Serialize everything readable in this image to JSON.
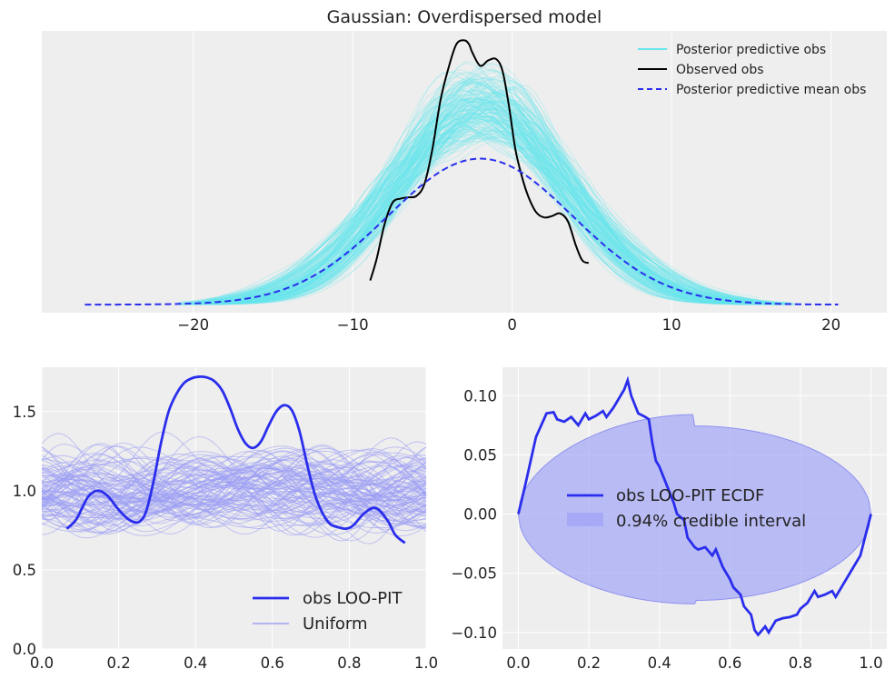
{
  "figure": {
    "background": "#ffffff",
    "panel_background": "#eeeeee",
    "grid_color": "#ffffff"
  },
  "chart_data": [
    {
      "type": "line",
      "title": "Gaussian: Overdispersed model",
      "xlim": [
        -29.5,
        23.5
      ],
      "ylim": [
        -0.003,
        0.102
      ],
      "xticks": [
        -20,
        -10,
        0,
        10,
        20
      ],
      "xtick_labels": [
        "−20",
        "−10",
        "0",
        "10",
        "20"
      ],
      "show_yaxis": false,
      "grid": true,
      "legend_position": "top-right",
      "legend": [
        {
          "label": "Posterior predictive obs",
          "color": "#67e6ee",
          "style": "solid"
        },
        {
          "label": "Observed obs",
          "color": "#000000",
          "style": "solid"
        },
        {
          "label": "Posterior predictive mean obs",
          "color": "#2a2eec",
          "style": "dashed"
        }
      ],
      "posterior_predictive": {
        "color": "#67e6ee",
        "n_draws": 200,
        "center_range": [
          -3.2,
          -0.8
        ],
        "sd_range": [
          4.6,
          6.4
        ],
        "x_range": [
          -21,
          18
        ]
      },
      "observed": {
        "color": "#000000",
        "x": [
          -8.9,
          -8.5,
          -8.0,
          -7.5,
          -7.0,
          -6.5,
          -6.0,
          -5.5,
          -5.0,
          -4.5,
          -4.0,
          -3.5,
          -3.0,
          -2.7,
          -2.5,
          -2.0,
          -1.5,
          -1.0,
          -0.6,
          -0.2,
          0.2,
          0.6,
          1.0,
          1.5,
          2.0,
          2.5,
          3.0,
          3.5,
          4.0,
          4.4,
          4.8
        ],
        "y": [
          0.009,
          0.017,
          0.03,
          0.038,
          0.0395,
          0.04,
          0.0405,
          0.045,
          0.058,
          0.076,
          0.088,
          0.097,
          0.0985,
          0.097,
          0.094,
          0.089,
          0.091,
          0.0915,
          0.087,
          0.074,
          0.058,
          0.048,
          0.0405,
          0.0345,
          0.0325,
          0.033,
          0.034,
          0.031,
          0.022,
          0.0165,
          0.0155
        ]
      },
      "mean": {
        "color": "#2a2eec",
        "center": -2.0,
        "sd": 5.8,
        "peak": 0.0544,
        "x_range": [
          -26.8,
          20.5
        ]
      }
    },
    {
      "type": "line",
      "xlim": [
        0,
        1
      ],
      "ylim": [
        0,
        1.78
      ],
      "xticks": [
        0.0,
        0.2,
        0.4,
        0.6,
        0.8,
        1.0
      ],
      "xtick_labels": [
        "0.0",
        "0.2",
        "0.4",
        "0.6",
        "0.8",
        "1.0"
      ],
      "yticks": [
        0.0,
        0.5,
        1.0,
        1.5
      ],
      "ytick_labels": [
        "0.0",
        "0.5",
        "1.0",
        "1.5"
      ],
      "grid": true,
      "legend_position": "bottom-right",
      "legend": [
        {
          "label": "obs LOO-PIT",
          "color": "#2a2eec",
          "style": "solid"
        },
        {
          "label": "Uniform",
          "color": "#a0a0f4",
          "style": "solid"
        }
      ],
      "uniform": {
        "color": "#9a9cf4",
        "n_draws": 100
      },
      "obs": {
        "color": "#2a2eec",
        "x": [
          0.065,
          0.09,
          0.12,
          0.145,
          0.17,
          0.2,
          0.225,
          0.25,
          0.27,
          0.29,
          0.31,
          0.33,
          0.35,
          0.37,
          0.39,
          0.41,
          0.43,
          0.45,
          0.47,
          0.49,
          0.51,
          0.53,
          0.55,
          0.57,
          0.59,
          0.61,
          0.63,
          0.65,
          0.67,
          0.69,
          0.71,
          0.73,
          0.75,
          0.77,
          0.79,
          0.81,
          0.84,
          0.87,
          0.9,
          0.92,
          0.945
        ],
        "y": [
          0.76,
          0.82,
          0.96,
          1.0,
          0.97,
          0.88,
          0.82,
          0.8,
          0.86,
          1.05,
          1.3,
          1.5,
          1.61,
          1.68,
          1.71,
          1.72,
          1.715,
          1.69,
          1.63,
          1.52,
          1.39,
          1.3,
          1.27,
          1.31,
          1.41,
          1.5,
          1.54,
          1.51,
          1.38,
          1.17,
          0.98,
          0.86,
          0.79,
          0.77,
          0.76,
          0.78,
          0.86,
          0.89,
          0.81,
          0.72,
          0.67
        ]
      }
    },
    {
      "type": "line",
      "xlim": [
        -0.045,
        1.045
      ],
      "ylim": [
        -0.114,
        0.124
      ],
      "xticks": [
        0.0,
        0.2,
        0.4,
        0.6,
        0.8,
        1.0
      ],
      "xtick_labels": [
        "0.0",
        "0.2",
        "0.4",
        "0.6",
        "0.8",
        "1.0"
      ],
      "yticks": [
        -0.1,
        -0.05,
        0.0,
        0.05,
        0.1
      ],
      "ytick_labels": [
        "−0.10",
        "−0.05",
        "0.00",
        "0.05",
        "0.10"
      ],
      "grid": true,
      "legend_position": "center",
      "legend": [
        {
          "label": "obs LOO-PIT ECDF",
          "color": "#2a2eec",
          "style": "solid"
        },
        {
          "label": "0.94% credible interval",
          "color": "#b3b5f5",
          "style": "patch"
        }
      ],
      "band": {
        "color": "#a3a5f6",
        "edge": "#8f91f0",
        "amplitude": 0.072
      },
      "ecdf": {
        "color": "#2a2eec",
        "x": [
          0.0,
          0.02,
          0.05,
          0.08,
          0.1,
          0.11,
          0.13,
          0.15,
          0.17,
          0.19,
          0.2,
          0.22,
          0.24,
          0.25,
          0.27,
          0.29,
          0.3,
          0.31,
          0.32,
          0.34,
          0.36,
          0.37,
          0.38,
          0.39,
          0.4,
          0.42,
          0.44,
          0.45,
          0.47,
          0.48,
          0.5,
          0.51,
          0.53,
          0.55,
          0.56,
          0.58,
          0.6,
          0.61,
          0.63,
          0.64,
          0.66,
          0.67,
          0.68,
          0.7,
          0.71,
          0.73,
          0.75,
          0.77,
          0.79,
          0.8,
          0.82,
          0.84,
          0.85,
          0.87,
          0.89,
          0.9,
          0.92,
          0.94,
          0.95,
          0.97,
          1.0
        ],
        "y": [
          0.0,
          0.025,
          0.065,
          0.085,
          0.086,
          0.08,
          0.078,
          0.082,
          0.075,
          0.085,
          0.08,
          0.083,
          0.087,
          0.082,
          0.09,
          0.1,
          0.105,
          0.113,
          0.1,
          0.085,
          0.082,
          0.08,
          0.06,
          0.045,
          0.04,
          0.025,
          0.01,
          0.0,
          -0.005,
          -0.02,
          -0.028,
          -0.03,
          -0.028,
          -0.035,
          -0.03,
          -0.045,
          -0.055,
          -0.062,
          -0.068,
          -0.078,
          -0.085,
          -0.098,
          -0.102,
          -0.095,
          -0.1,
          -0.09,
          -0.088,
          -0.087,
          -0.085,
          -0.08,
          -0.075,
          -0.065,
          -0.07,
          -0.068,
          -0.065,
          -0.07,
          -0.06,
          -0.05,
          -0.045,
          -0.035,
          0.0
        ]
      }
    }
  ]
}
